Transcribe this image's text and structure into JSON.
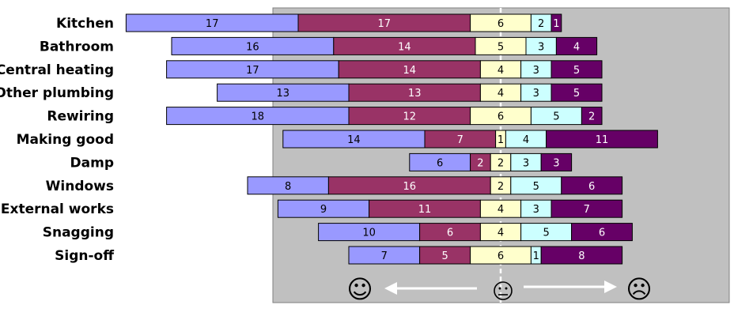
{
  "chart_data": {
    "type": "bar",
    "orientation": "horizontal",
    "stacked": "diverging",
    "title": "",
    "xlabel": "",
    "ylabel": "",
    "categories": [
      "Kitchen",
      "Bathroom",
      "Central heating",
      "Other plumbing",
      "Rewiring",
      "Making good",
      "Damp",
      "Windows",
      "External works",
      "Snagging",
      "Sign-off"
    ],
    "series": [
      {
        "color": "#9999ff",
        "text_color": "#000000",
        "values": [
          17,
          16,
          17,
          13,
          18,
          14,
          6,
          8,
          9,
          10,
          7
        ]
      },
      {
        "color": "#993366",
        "text_color": "#ffffff",
        "values": [
          17,
          14,
          14,
          13,
          12,
          7,
          2,
          16,
          11,
          6,
          5
        ]
      },
      {
        "color": "#ffffcc",
        "text_color": "#000000",
        "values": [
          6,
          5,
          4,
          4,
          6,
          1,
          2,
          2,
          4,
          4,
          6
        ]
      },
      {
        "color": "#ccffff",
        "text_color": "#000000",
        "values": [
          2,
          3,
          3,
          3,
          5,
          4,
          3,
          5,
          3,
          5,
          1
        ]
      },
      {
        "color": "#660066",
        "text_color": "#ffffff",
        "values": [
          1,
          4,
          5,
          5,
          2,
          11,
          3,
          6,
          7,
          6,
          8
        ]
      }
    ],
    "grid": false,
    "legend": "none",
    "plot_background": "#c0c0c0",
    "center_line": "dashed-white",
    "scale_icons": [
      {
        "name": "smiley-happy-icon",
        "glyph": "☺"
      },
      {
        "name": "smiley-neutral-icon",
        "glyph": "😐"
      },
      {
        "name": "smiley-sad-icon",
        "glyph": "☹"
      }
    ]
  }
}
